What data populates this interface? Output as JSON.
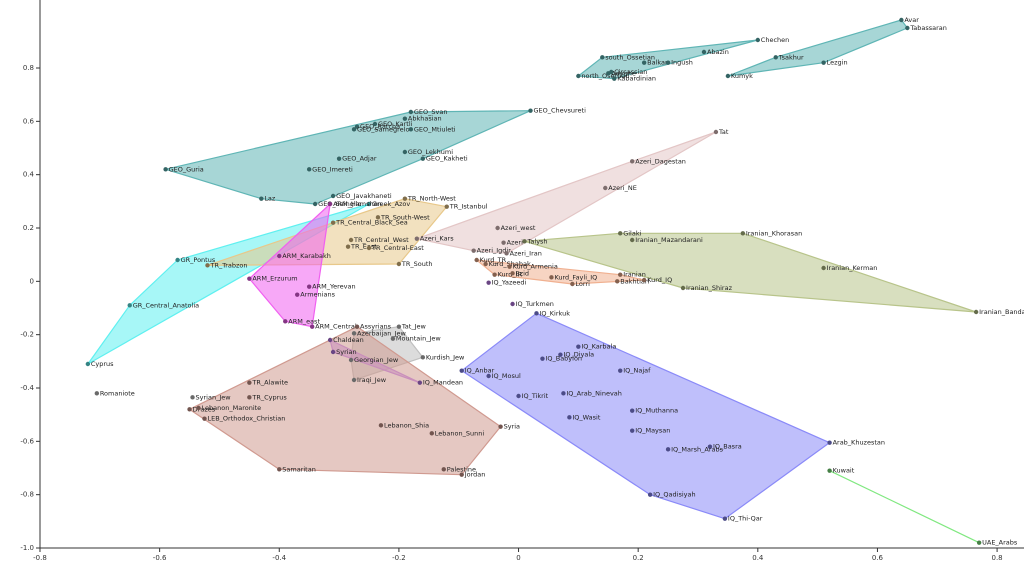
{
  "chart_data": {
    "type": "scatter",
    "xlim": [
      -0.8,
      0.845
    ],
    "ylim": [
      -1,
      1.055
    ],
    "xticks": [
      -0.8,
      -0.6,
      -0.4,
      -0.2,
      0,
      0.2,
      0.4,
      0.6,
      0.8
    ],
    "yticks": [
      {
        "value": -1,
        "label": "-1.0"
      },
      -0.8,
      -0.6,
      -0.4,
      -0.2,
      0,
      0.2,
      0.4,
      0.6,
      0.8
    ],
    "series": [
      {
        "color": "#5fb5b5",
        "labels": [
          "north_Osettian",
          "south_Ossetian",
          "Adyghe",
          "Circassian",
          "Kabardinian",
          "Balkar",
          "Ingush",
          "Abazin",
          "Chechen"
        ],
        "x": [
          0.1,
          0.14,
          0.15,
          0.155,
          0.16,
          0.21,
          0.25,
          0.31,
          0.4
        ],
        "y": [
          0.77,
          0.84,
          0.78,
          0.785,
          0.76,
          0.82,
          0.82,
          0.86,
          0.905
        ]
      },
      {
        "color": "#5fb5b5",
        "labels": [
          "Kumyk",
          "Tsakhur",
          "Lezgin",
          "Tabassaran",
          "Avar"
        ],
        "x": [
          0.35,
          0.43,
          0.51,
          0.65,
          0.64
        ],
        "y": [
          0.77,
          0.84,
          0.82,
          0.95,
          0.98
        ]
      },
      {
        "color": "#5fb5b5",
        "labels": [
          "GEO_Guria",
          "GEO_Ratcha",
          "GEO_Samegrelo",
          "GEO_Kartli",
          "GEO_Svan",
          "Abkhasian",
          "GEO_Mtiuleti",
          "GEO_Chevsureti",
          "GEO_Adjar",
          "GEO_Imereti",
          "GEO_Lekhumi",
          "GEO_Kakheti",
          "GEO_Javakhaneti",
          "Laz",
          "GEO_Saingilo"
        ],
        "x": [
          -0.59,
          -0.27,
          -0.275,
          -0.24,
          -0.18,
          -0.19,
          -0.18,
          0.02,
          -0.3,
          -0.35,
          -0.19,
          -0.16,
          -0.31,
          -0.43,
          -0.34
        ],
        "y": [
          0.42,
          0.58,
          0.57,
          0.59,
          0.635,
          0.61,
          0.57,
          0.64,
          0.46,
          0.42,
          0.485,
          0.46,
          0.32,
          0.31,
          0.29
        ]
      },
      {
        "color": "#5ff0f0",
        "labels": [
          "GR_Pontus",
          "GR_Central_Anatolia",
          "Cyprus",
          "Greek_Azov"
        ],
        "x": [
          -0.57,
          -0.65,
          -0.72,
          -0.25
        ],
        "y": [
          0.08,
          -0.09,
          -0.31,
          0.29
        ]
      },
      {
        "color": "#e8c88a",
        "labels": [
          "TR_Trabzon",
          "TR_North-West",
          "TR_Istanbul",
          "TR_South-West",
          "TR_Central_Black_Sea",
          "TR_Central_West",
          "TR_East",
          "TR_Central-East",
          "TR_South"
        ],
        "x": [
          -0.52,
          -0.19,
          -0.12,
          -0.235,
          -0.31,
          -0.28,
          -0.285,
          -0.25,
          -0.2
        ],
        "y": [
          0.06,
          0.31,
          0.28,
          0.24,
          0.22,
          0.155,
          0.13,
          0.125,
          0.065
        ]
      },
      {
        "color": "#f060f0",
        "labels": [
          "ARM_Hamshen",
          "ARM_Karabakh",
          "ARM_Erzurum",
          "ARM_Yerevan",
          "Armenians",
          "ARM_east",
          "ARM_Central"
        ],
        "x": [
          -0.315,
          -0.4,
          -0.45,
          -0.35,
          -0.37,
          -0.39,
          -0.345
        ],
        "y": [
          0.29,
          0.095,
          0.01,
          -0.02,
          -0.05,
          -0.15,
          -0.17
        ]
      },
      {
        "color": "#e3c6c6",
        "labels": [
          "Tat",
          "Azeri_Dagestan",
          "Azeri_NE",
          "Azeri_Kars",
          "Azeri_west",
          "Azeri_Igdir",
          "Azeri",
          "Azeri_Iran"
        ],
        "x": [
          0.33,
          0.19,
          0.145,
          -0.17,
          -0.035,
          -0.075,
          -0.025,
          -0.02
        ],
        "y": [
          0.56,
          0.45,
          0.35,
          0.16,
          0.2,
          0.115,
          0.145,
          0.105
        ]
      },
      {
        "color": "#b8c48a",
        "labels": [
          "Talysh",
          "Gilaki",
          "Iranian_Mazandarani",
          "Iranian_Khorasan",
          "Iranian_Kerman",
          "Iranian_Bandari",
          "Iranian_Shiraz"
        ],
        "x": [
          0.01,
          0.17,
          0.19,
          0.375,
          0.51,
          0.765,
          0.275
        ],
        "y": [
          0.15,
          0.18,
          0.155,
          0.18,
          0.05,
          -0.115,
          -0.025
        ]
      },
      {
        "color": "#f0b090",
        "labels": [
          "Kurd_TR",
          "Kurd_Shabak",
          "Kurd_Armenia",
          "Kurd_IR",
          "Ezid",
          "Kurd_Fayli_IQ",
          "Lorri",
          "Iranian",
          "Bakhtiari",
          "Kurd_IQ"
        ],
        "x": [
          -0.07,
          -0.055,
          -0.015,
          -0.04,
          -0.01,
          0.055,
          0.09,
          0.17,
          0.165,
          0.21
        ],
        "y": [
          0.08,
          0.065,
          0.055,
          0.025,
          0.03,
          0.015,
          -0.01,
          0.025,
          0,
          0.005
        ]
      },
      {
        "color": "#c080f0",
        "labels": [
          "IQ_Yazeedi"
        ],
        "x": [
          -0.05
        ],
        "y": [
          -0.005
        ]
      },
      {
        "color": "#c080f0",
        "labels": [
          "IQ_Turkmen"
        ],
        "x": [
          -0.01
        ],
        "y": [
          -0.085
        ]
      },
      {
        "color": "#8a8af8",
        "labels": [
          "IQ_Kirkuk",
          "IQ_Anbar",
          "IQ_Mosul",
          "IQ_Karbala",
          "IQ_Diyala",
          "IQ_Babylon",
          "IQ_Najaf",
          "IQ_Arab_Ninevah",
          "IQ_Tikrit",
          "IQ_Wasit",
          "IQ_Muthanna",
          "IQ_Maysan",
          "IQ_Basra",
          "IQ_Marsh_Arabs",
          "IQ_Qadisiyah",
          "IQ_Thi-Qar",
          "Arab_Khuzestan"
        ],
        "x": [
          0.03,
          -0.095,
          -0.05,
          0.1,
          0.07,
          0.04,
          0.17,
          0.075,
          0.0,
          0.085,
          0.19,
          0.19,
          0.32,
          0.25,
          0.22,
          0.345,
          0.52
        ],
        "y": [
          -0.12,
          -0.335,
          -0.355,
          -0.245,
          -0.275,
          -0.29,
          -0.335,
          -0.42,
          -0.43,
          -0.51,
          -0.485,
          -0.56,
          -0.62,
          -0.63,
          -0.8,
          -0.89,
          -0.605
        ]
      },
      {
        "color": "#80e880",
        "labels": [
          "Kuwait",
          "UAE_Arabs"
        ],
        "x": [
          0.52,
          0.77
        ],
        "y": [
          -0.71,
          -0.98
        ]
      },
      {
        "color": "#c0c0c0",
        "labels": [
          "Tat_Jew",
          "Mountain_Jew",
          "Azerbaijan_Jew",
          "Kurdish_Jew",
          "Georgian_Jew",
          "Iraqi_Jew"
        ],
        "x": [
          -0.2,
          -0.21,
          -0.275,
          -0.16,
          -0.28,
          -0.275
        ],
        "y": [
          -0.17,
          -0.215,
          -0.195,
          -0.285,
          -0.295,
          -0.37
        ]
      },
      {
        "color": "#c080f0",
        "labels": [
          "Chaldean",
          "Syrian",
          "IQ_Mandean"
        ],
        "x": [
          -0.315,
          -0.31,
          -0.165
        ],
        "y": [
          -0.22,
          -0.265,
          -0.38
        ]
      },
      {
        "color": "#d09a90",
        "labels": [
          "Assyrians",
          "Syria",
          "Lebanon_Sunni",
          "Lebanon_Shia",
          "Palestine",
          "Jordan",
          "Samaritan",
          "Druzes",
          "Lebanon_Maronite",
          "LEB_Orthodox_Christian",
          "TR_Alawite",
          "TR_Cyprus"
        ],
        "x": [
          -0.27,
          -0.03,
          -0.145,
          -0.23,
          -0.125,
          -0.095,
          -0.4,
          -0.55,
          -0.535,
          -0.525,
          -0.45,
          -0.45
        ],
        "y": [
          -0.17,
          -0.545,
          -0.57,
          -0.54,
          -0.705,
          -0.725,
          -0.705,
          -0.48,
          -0.475,
          -0.515,
          -0.38,
          -0.435
        ]
      },
      {
        "color": "#c0c0c0",
        "labels": [
          "Romaniote"
        ],
        "x": [
          -0.705
        ],
        "y": [
          -0.42
        ]
      },
      {
        "color": "#c0c0c0",
        "labels": [
          "Syrian_Jew"
        ],
        "x": [
          -0.545
        ],
        "y": [
          -0.435
        ]
      }
    ]
  }
}
